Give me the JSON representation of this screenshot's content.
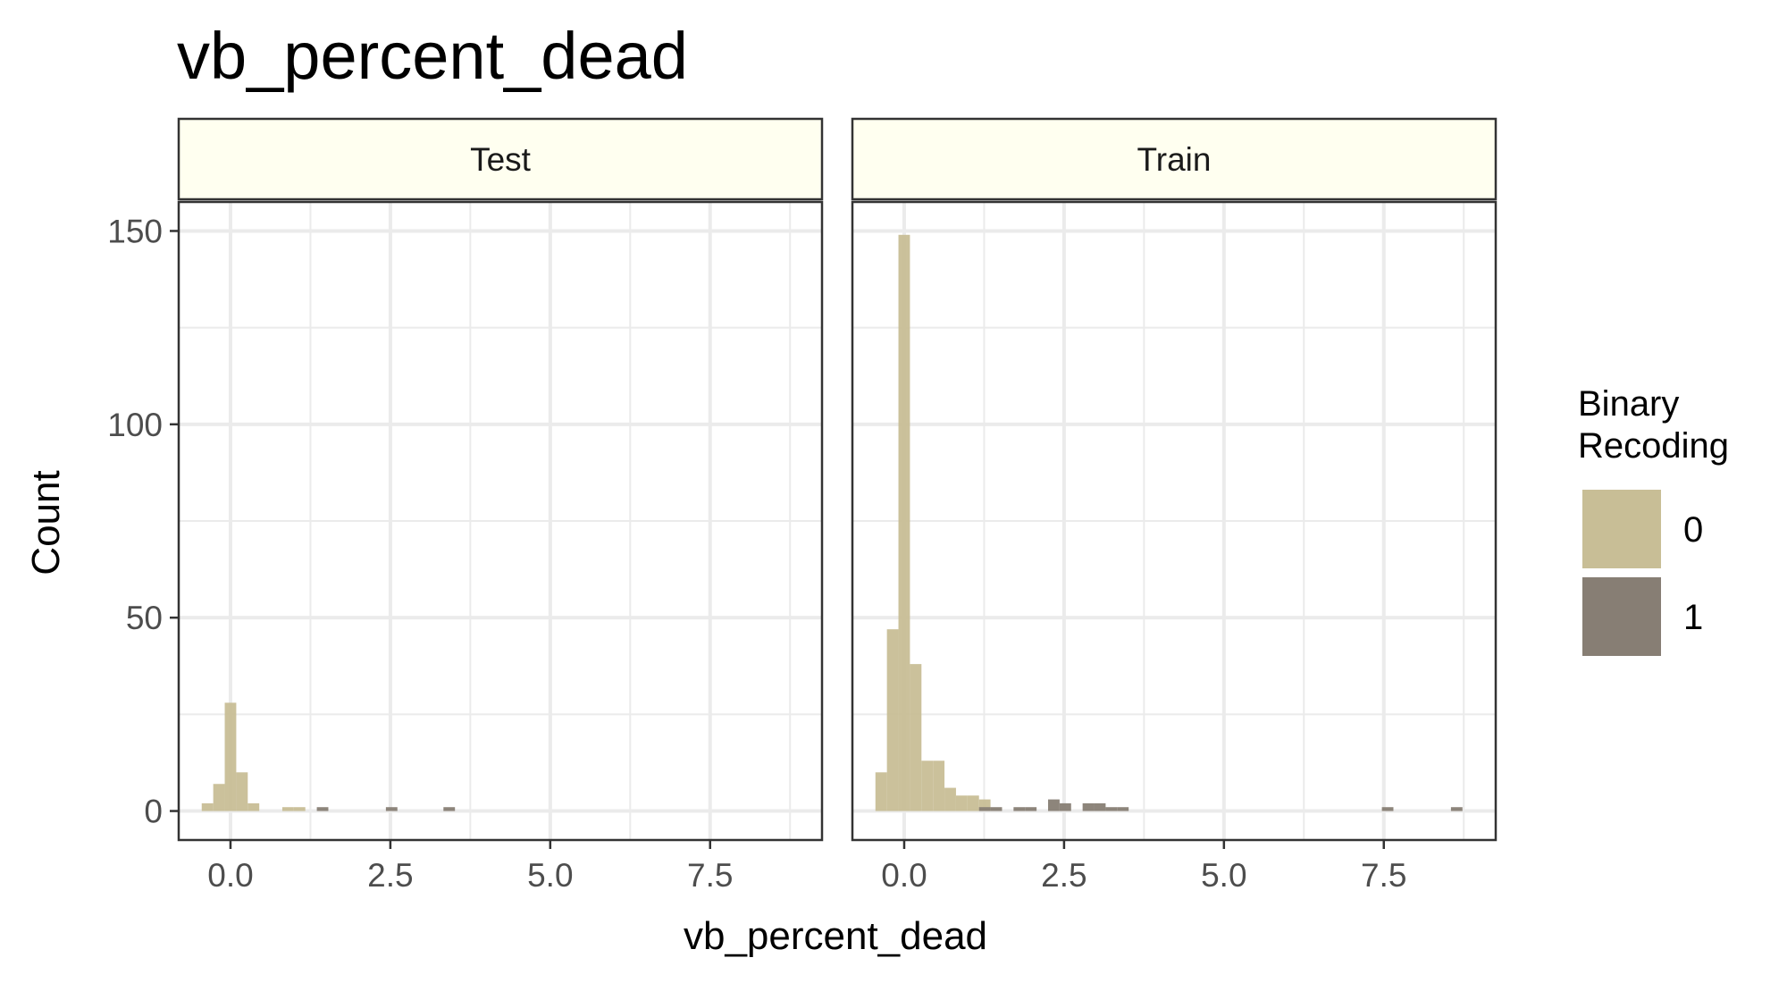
{
  "chart_data": {
    "type": "bar",
    "subtype": "histogram",
    "title": "vb_percent_dead",
    "xlabel": "vb_percent_dead",
    "ylabel": "Count",
    "xlim": [
      -0.81,
      9.25
    ],
    "ylim": [
      -7.5,
      157.5
    ],
    "x_ticks": [
      "0.0",
      "2.5",
      "5.0",
      "7.5"
    ],
    "x_tick_values": [
      0,
      2.5,
      5,
      7.5
    ],
    "y_ticks": [
      "0",
      "50",
      "100",
      "150"
    ],
    "y_tick_values": [
      0,
      50,
      100,
      150
    ],
    "bin_width": 0.18,
    "grid": true,
    "legend": {
      "position": "right",
      "title": [
        "Binary",
        "Recoding"
      ],
      "entries": [
        {
          "label": "0",
          "color": "#c8be96"
        },
        {
          "label": "1",
          "color": "#877e74"
        }
      ]
    },
    "panels": [
      {
        "label": "Test",
        "series": [
          {
            "name": "0",
            "color": "#c8be96",
            "bins": [
              {
                "x": -0.36,
                "count": 2
              },
              {
                "x": -0.18,
                "count": 7
              },
              {
                "x": 0.0,
                "count": 28
              },
              {
                "x": 0.18,
                "count": 10
              },
              {
                "x": 0.36,
                "count": 2
              },
              {
                "x": 0.9,
                "count": 1
              },
              {
                "x": 1.08,
                "count": 1
              }
            ]
          },
          {
            "name": "1",
            "color": "#877e74",
            "bins": [
              {
                "x": 1.44,
                "count": 1
              },
              {
                "x": 2.52,
                "count": 1
              },
              {
                "x": 3.42,
                "count": 1
              }
            ]
          }
        ]
      },
      {
        "label": "Train",
        "series": [
          {
            "name": "0",
            "color": "#c8be96",
            "bins": [
              {
                "x": -0.36,
                "count": 10
              },
              {
                "x": -0.18,
                "count": 47
              },
              {
                "x": 0.0,
                "count": 149
              },
              {
                "x": 0.18,
                "count": 38
              },
              {
                "x": 0.36,
                "count": 13
              },
              {
                "x": 0.54,
                "count": 13
              },
              {
                "x": 0.72,
                "count": 6
              },
              {
                "x": 0.9,
                "count": 4
              },
              {
                "x": 1.08,
                "count": 4
              },
              {
                "x": 1.26,
                "count": 3
              }
            ]
          },
          {
            "name": "1",
            "color": "#877e74",
            "bins": [
              {
                "x": 1.26,
                "count": 1
              },
              {
                "x": 1.44,
                "count": 1
              },
              {
                "x": 1.8,
                "count": 1
              },
              {
                "x": 1.98,
                "count": 1
              },
              {
                "x": 2.34,
                "count": 3
              },
              {
                "x": 2.52,
                "count": 2
              },
              {
                "x": 2.88,
                "count": 2
              },
              {
                "x": 3.06,
                "count": 2
              },
              {
                "x": 3.24,
                "count": 1
              },
              {
                "x": 3.42,
                "count": 1
              },
              {
                "x": 7.56,
                "count": 1
              },
              {
                "x": 8.64,
                "count": 1
              }
            ]
          }
        ]
      }
    ]
  }
}
